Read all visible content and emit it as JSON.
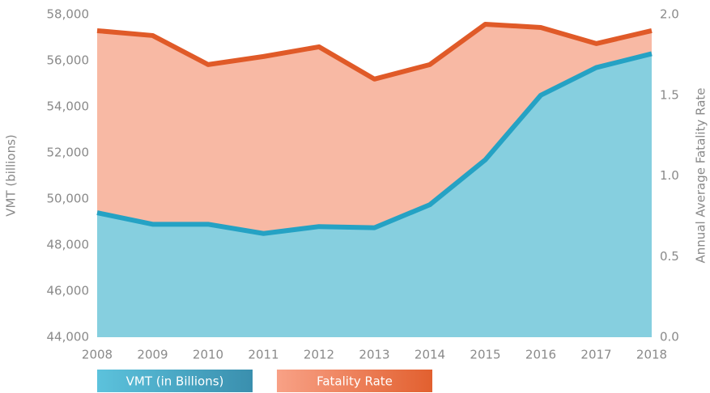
{
  "chart_data": {
    "type": "area",
    "categories": [
      "2008",
      "2009",
      "2010",
      "2011",
      "2012",
      "2013",
      "2014",
      "2015",
      "2016",
      "2017",
      "2018"
    ],
    "series": [
      {
        "name": "VMT (in Billions)",
        "color": "#25a2c4",
        "fill_color": "#86cfdf",
        "values": [
          49400,
          48900,
          48900,
          48500,
          48800,
          48750,
          49750,
          51700,
          54500,
          55700,
          56300
        ]
      },
      {
        "name": "Fatality Rate",
        "color": "#e05a28",
        "fill_color": "#f8b9a4",
        "axis": "y2",
        "values": [
          1.9,
          1.87,
          1.69,
          1.74,
          1.8,
          1.6,
          1.69,
          1.94,
          1.92,
          1.82,
          1.9
        ]
      }
    ],
    "ylabel": "VMT (billions)",
    "y2label": "Annual Average Fatality Rate",
    "ylim": [
      44000,
      58000
    ],
    "yticks": [
      {
        "value": 44000,
        "label": "44,000"
      },
      {
        "value": 46000,
        "label": "46,000"
      },
      {
        "value": 48000,
        "label": "48,000"
      },
      {
        "value": 50000,
        "label": "50,000"
      },
      {
        "value": 52000,
        "label": "52,000"
      },
      {
        "value": 54000,
        "label": "54,000"
      },
      {
        "value": 56000,
        "label": "56,000"
      },
      {
        "value": 58000,
        "label": "58,000"
      }
    ],
    "y2lim": [
      0,
      2
    ],
    "y2ticks": [
      {
        "value": 0,
        "label": "0.0"
      },
      0.5,
      {
        "value": 1,
        "label": "1.0"
      },
      1.5,
      {
        "value": 2,
        "label": "2.0"
      }
    ],
    "legend": "bottom-left"
  }
}
